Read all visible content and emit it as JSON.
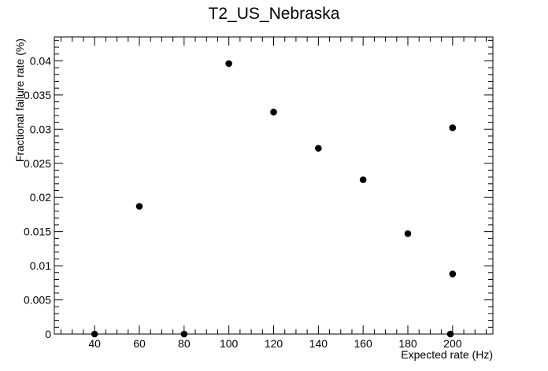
{
  "chart_data": {
    "type": "scatter",
    "title": "T2_US_Nebraska",
    "xlabel": "Expected rate (Hz)",
    "ylabel": "Fractional failure rate (%)",
    "xlim": [
      22,
      218
    ],
    "ylim": [
      0,
      0.0435
    ],
    "x_ticks": [
      40,
      60,
      80,
      100,
      120,
      140,
      160,
      180,
      200
    ],
    "y_ticks": [
      0,
      0.005,
      0.01,
      0.015,
      0.02,
      0.025,
      0.03,
      0.035,
      0.04
    ],
    "x_tick_labels": [
      "40",
      "60",
      "80",
      "100",
      "120",
      "140",
      "160",
      "180",
      "200"
    ],
    "y_tick_labels": [
      "0",
      "0.005",
      "0.01",
      "0.015",
      "0.02",
      "0.025",
      "0.03",
      "0.035",
      "0.04"
    ],
    "grid": false,
    "legend": "none",
    "marker_color": "#000000",
    "points": [
      {
        "x": 40,
        "y": 0
      },
      {
        "x": 60,
        "y": 0.0187
      },
      {
        "x": 80,
        "y": 0
      },
      {
        "x": 100,
        "y": 0.0396
      },
      {
        "x": 120,
        "y": 0.0325
      },
      {
        "x": 140,
        "y": 0.0272
      },
      {
        "x": 160,
        "y": 0.0226
      },
      {
        "x": 180,
        "y": 0.0147
      },
      {
        "x": 199,
        "y": 0
      },
      {
        "x": 200,
        "y": 0.0088
      },
      {
        "x": 200,
        "y": 0.0302
      }
    ]
  }
}
